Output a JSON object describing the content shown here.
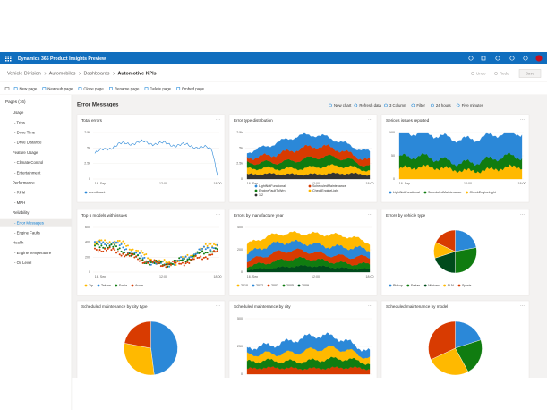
{
  "app": {
    "title": "Dynamics 365 Product Insights Preview"
  },
  "breadcrumb": [
    "Vehicle Division",
    "Automobiles",
    "Dashboards",
    "Automotive KPIs"
  ],
  "top_actions": [
    "Undo",
    "Redo",
    "Save"
  ],
  "commands": [
    "New page",
    "New sub page",
    "Clone page",
    "Rename page",
    "Delete page",
    "Embed page"
  ],
  "nav": {
    "header": "Pages (16)",
    "items": [
      "Usage",
      "- Trips",
      "- Drive Time",
      "- Drive Distance",
      "Feature Usage",
      "- Climate Control",
      "- Entertainment",
      "Performance",
      "- RPM",
      "- MPH",
      "Reliability",
      "- Error Messages",
      "- Engine Faults",
      "Health",
      "- Engine Temperature",
      "- Oil Level"
    ]
  },
  "page": {
    "title": "Error Messages",
    "toolbar": [
      "New chart",
      "Refresh data",
      "3 Column",
      "Filter",
      "24 hours",
      "Five minutes"
    ]
  },
  "cards": [
    {
      "title": "Total errors",
      "kind": "line",
      "yticks": [
        "7.5k",
        "5k",
        "2.5k",
        "0"
      ],
      "xticks": [
        "16. Sep",
        "12:00",
        "18:00"
      ],
      "legend": [
        {
          "name": "eventCount",
          "color": "#2b88d8"
        }
      ]
    },
    {
      "title": "Error type distribution",
      "kind": "stack",
      "yticks": [
        "7.5k",
        "5k",
        "2.5k",
        "0"
      ],
      "xticks": [
        "16. Sep",
        "12:00",
        "18:00"
      ],
      "legend": [
        {
          "name": "LightNotFunctional",
          "color": "#2b88d8"
        },
        {
          "name": "ScheduledMaintenance",
          "color": "#d83b01"
        },
        {
          "name": "EngineFaultToWrn",
          "color": "#107c10"
        },
        {
          "name": "CheckEngineLight",
          "color": "#ffb900"
        },
        {
          "name": "1/2",
          "color": "#333333"
        }
      ]
    },
    {
      "title": "Serious issues reported",
      "kind": "area3",
      "yticks": [
        "100",
        "50",
        "0"
      ],
      "xticks": [
        "16. Sep",
        "12:00",
        "18:00"
      ],
      "legend": [
        {
          "name": "LightNotFunctional",
          "color": "#2b88d8"
        },
        {
          "name": "ScheduledMaintenance",
          "color": "#107c10"
        },
        {
          "name": "CheckEngineLight",
          "color": "#ffb900"
        }
      ]
    },
    {
      "title": "Top 5 models with issues",
      "kind": "scatter",
      "yticks": [
        "600",
        "400",
        "200",
        "0"
      ],
      "xticks": [
        "16. Sep",
        "12:00",
        "18:00"
      ],
      "legend": [
        {
          "name": "Zip",
          "color": "#ffb900"
        },
        {
          "name": "Takara",
          "color": "#2b88d8"
        },
        {
          "name": "Sonia",
          "color": "#107c10"
        },
        {
          "name": "Arcos",
          "color": "#d83b01"
        }
      ]
    },
    {
      "title": "Errors by manufacture year",
      "kind": "stack",
      "yticks": [
        "400",
        "200",
        "0"
      ],
      "xticks": [
        "16. Sep",
        "12:00",
        "18:00"
      ],
      "legend": [
        {
          "name": "2010",
          "color": "#ffb900"
        },
        {
          "name": "2012",
          "color": "#2b88d8"
        },
        {
          "name": "2003",
          "color": "#d83b01"
        },
        {
          "name": "2005",
          "color": "#107c10"
        },
        {
          "name": "2009",
          "color": "#004b1c"
        }
      ]
    },
    {
      "title": "Errors by vehicle type",
      "kind": "pie",
      "values": [
        22,
        28,
        20,
        12,
        18
      ],
      "legend": [
        {
          "name": "Pickup",
          "color": "#2b88d8"
        },
        {
          "name": "Sedan",
          "color": "#107c10"
        },
        {
          "name": "Minivan",
          "color": "#004b1c"
        },
        {
          "name": "SUV",
          "color": "#ffb900"
        },
        {
          "name": "Sports",
          "color": "#d83b01"
        }
      ]
    },
    {
      "title": "Scheduled maintenance by city type",
      "kind": "pie",
      "values": [
        48,
        30,
        22
      ],
      "legend": [
        {
          "name": "",
          "color": "#2b88d8"
        },
        {
          "name": "",
          "color": "#ffb900"
        },
        {
          "name": "",
          "color": "#d83b01"
        }
      ]
    },
    {
      "title": "Scheduled maintenance by city",
      "kind": "stack",
      "yticks": [
        "500",
        "250",
        "0"
      ],
      "xticks": [],
      "legend": [
        {
          "name": "",
          "color": "#2b88d8"
        },
        {
          "name": "",
          "color": "#ffb900"
        },
        {
          "name": "",
          "color": "#107c10"
        },
        {
          "name": "",
          "color": "#d83b01"
        }
      ]
    },
    {
      "title": "Scheduled maintenance by model",
      "kind": "pie",
      "values": [
        20,
        22,
        26,
        32
      ],
      "legend": [
        {
          "name": "",
          "color": "#2b88d8"
        },
        {
          "name": "",
          "color": "#107c10"
        },
        {
          "name": "",
          "color": "#ffb900"
        },
        {
          "name": "",
          "color": "#d83b01"
        }
      ]
    }
  ]
}
